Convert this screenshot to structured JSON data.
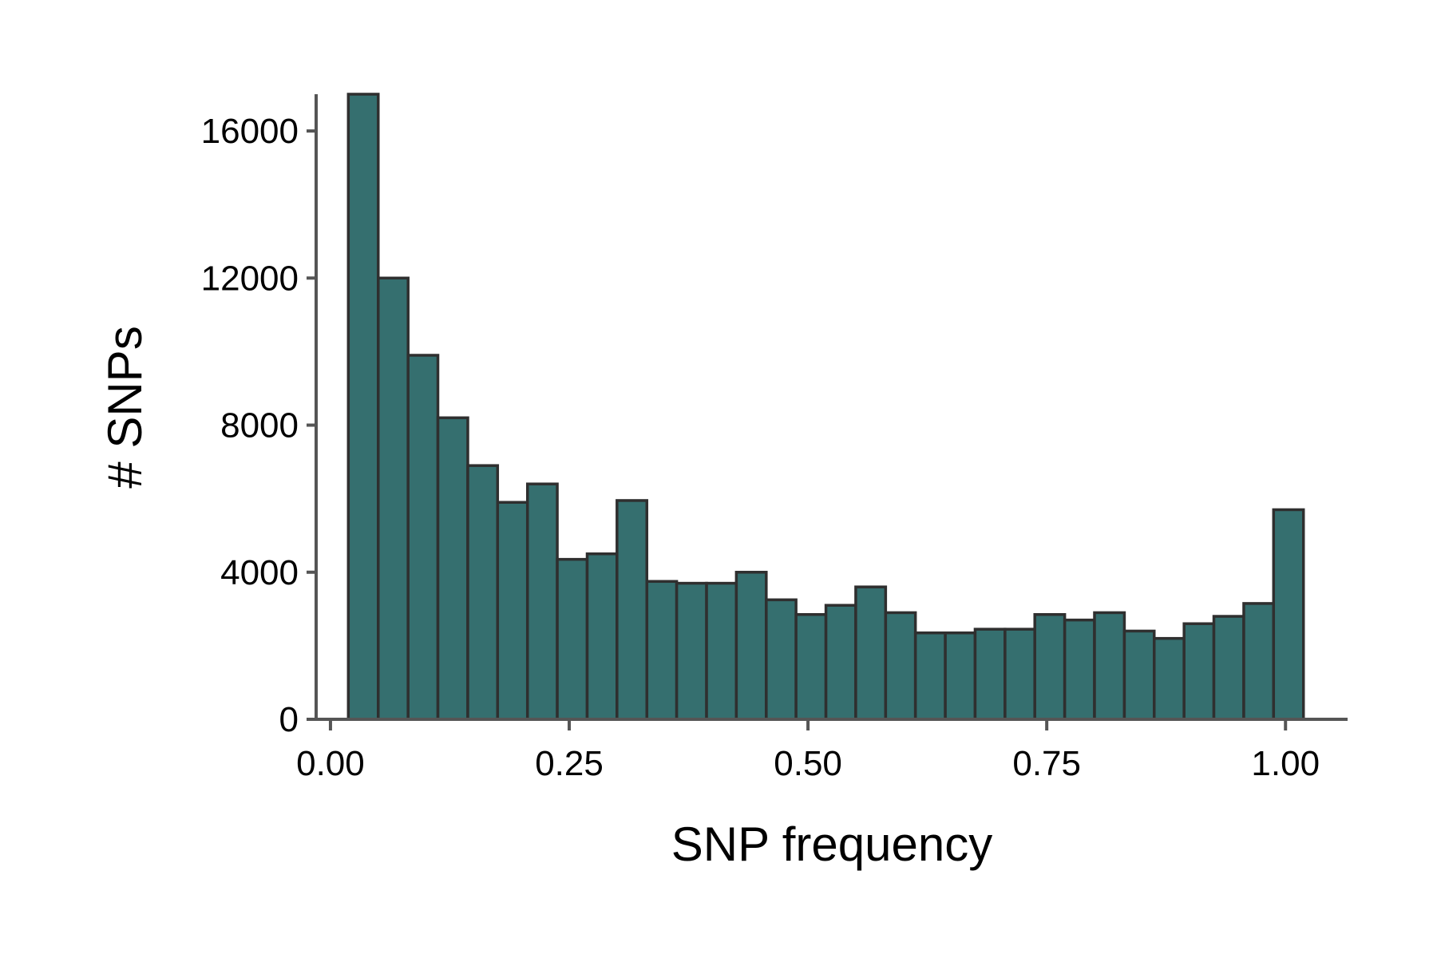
{
  "chart_data": {
    "type": "bar",
    "subtype": "histogram",
    "title": "",
    "xlabel": "SNP frequency",
    "ylabel": "# SNPs",
    "xlim": [
      -0.015,
      1.065
    ],
    "ylim": [
      0,
      17000
    ],
    "xticks": [
      0.0,
      0.25,
      0.5,
      0.75,
      1.0
    ],
    "xtick_labels": [
      "0.00",
      "0.25",
      "0.50",
      "0.75",
      "1.00"
    ],
    "yticks": [
      0,
      4000,
      8000,
      12000,
      16000
    ],
    "ytick_labels": [
      "0",
      "4000",
      "8000",
      "12000",
      "16000"
    ],
    "grid": false,
    "legend": "none",
    "bar_color": "#356f6f",
    "bar_edge_color": "#2f2f2f",
    "axis_color": "#555555",
    "bins": [
      {
        "x0": 0.0187,
        "x1": 0.05,
        "value": 17000
      },
      {
        "x0": 0.05,
        "x1": 0.0813,
        "value": 12000
      },
      {
        "x0": 0.0813,
        "x1": 0.1125,
        "value": 9900
      },
      {
        "x0": 0.1125,
        "x1": 0.1438,
        "value": 8200
      },
      {
        "x0": 0.1438,
        "x1": 0.175,
        "value": 6900
      },
      {
        "x0": 0.175,
        "x1": 0.2063,
        "value": 5900
      },
      {
        "x0": 0.2063,
        "x1": 0.2375,
        "value": 6400
      },
      {
        "x0": 0.2375,
        "x1": 0.2688,
        "value": 4350
      },
      {
        "x0": 0.2688,
        "x1": 0.3,
        "value": 4500
      },
      {
        "x0": 0.3,
        "x1": 0.3313,
        "value": 5950
      },
      {
        "x0": 0.3313,
        "x1": 0.3625,
        "value": 3750
      },
      {
        "x0": 0.3625,
        "x1": 0.3938,
        "value": 3700
      },
      {
        "x0": 0.3938,
        "x1": 0.425,
        "value": 3700
      },
      {
        "x0": 0.425,
        "x1": 0.4563,
        "value": 4000
      },
      {
        "x0": 0.4563,
        "x1": 0.4875,
        "value": 3250
      },
      {
        "x0": 0.4875,
        "x1": 0.5188,
        "value": 2850
      },
      {
        "x0": 0.5188,
        "x1": 0.55,
        "value": 3100
      },
      {
        "x0": 0.55,
        "x1": 0.5813,
        "value": 3600
      },
      {
        "x0": 0.5813,
        "x1": 0.6125,
        "value": 2900
      },
      {
        "x0": 0.6125,
        "x1": 0.6438,
        "value": 2350
      },
      {
        "x0": 0.6438,
        "x1": 0.675,
        "value": 2350
      },
      {
        "x0": 0.675,
        "x1": 0.7063,
        "value": 2450
      },
      {
        "x0": 0.7063,
        "x1": 0.7375,
        "value": 2450
      },
      {
        "x0": 0.7375,
        "x1": 0.7688,
        "value": 2850
      },
      {
        "x0": 0.7688,
        "x1": 0.8,
        "value": 2700
      },
      {
        "x0": 0.8,
        "x1": 0.8313,
        "value": 2900
      },
      {
        "x0": 0.8313,
        "x1": 0.8625,
        "value": 2400
      },
      {
        "x0": 0.8625,
        "x1": 0.8938,
        "value": 2200
      },
      {
        "x0": 0.8938,
        "x1": 0.925,
        "value": 2600
      },
      {
        "x0": 0.925,
        "x1": 0.9563,
        "value": 2800
      },
      {
        "x0": 0.9563,
        "x1": 0.9875,
        "value": 3150
      },
      {
        "x0": 0.9875,
        "x1": 1.0188,
        "value": 5700
      }
    ]
  }
}
